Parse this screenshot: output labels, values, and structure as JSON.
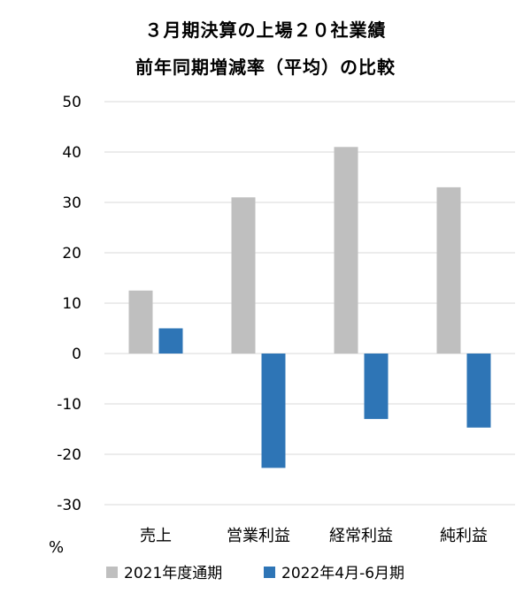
{
  "chart_data": {
    "type": "bar",
    "title": "３月期決算の上場２０社業績",
    "subtitle": "前年同期増減率（平均）の比較",
    "ylabel": "%",
    "ylim": [
      -30,
      50
    ],
    "yticks": [
      50,
      40,
      30,
      20,
      10,
      0,
      -10,
      -20,
      -30
    ],
    "grid": true,
    "legend_placement": "bottom",
    "categories": [
      "売上",
      "営業利益",
      "経常利益",
      "純利益"
    ],
    "series": [
      {
        "name": "2021年度通期",
        "color": "#bfbfbf",
        "values": [
          12.5,
          31,
          41,
          33
        ]
      },
      {
        "name": "2022年4月-6月期",
        "color": "#2e75b6",
        "values": [
          5,
          -22.7,
          -13,
          -14.7
        ]
      }
    ]
  }
}
